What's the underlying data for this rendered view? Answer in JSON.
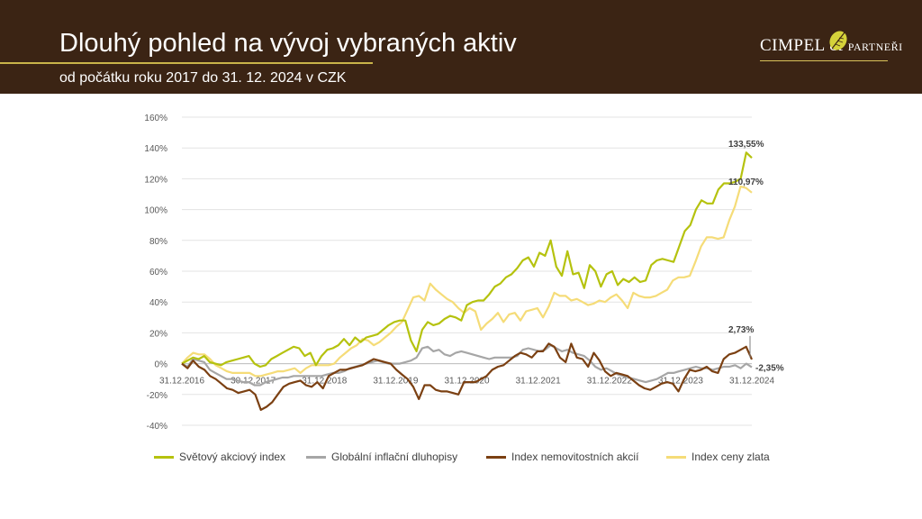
{
  "header": {
    "title": "Dlouhý pohled na vývoj vybraných aktiv",
    "subtitle": "od počátku roku 2017 do 31. 12. 2024 v CZK",
    "logo_main": "CIMPEL",
    "logo_amp": "&",
    "logo_small": "PARTNEŘI"
  },
  "colors": {
    "header_bg": "#3b2414",
    "accent": "#c9b44a"
  },
  "chart_data": {
    "type": "line",
    "x_tick_labels": [
      "31.12.2016",
      "30.12.2017",
      "31.12.2018",
      "31.12.2019",
      "31.12.2020",
      "31.12.2021",
      "31.12.2022",
      "31.12.2023",
      "31.12.2024"
    ],
    "y_tick_labels": [
      "-40%",
      "-20%",
      "0%",
      "20%",
      "40%",
      "60%",
      "80%",
      "100%",
      "120%",
      "140%",
      "160%"
    ],
    "ylim": [
      -40,
      160
    ],
    "xlim": [
      0,
      96
    ],
    "grid": true,
    "legend_position": "bottom",
    "series": [
      {
        "name": "Světový akciový index",
        "color": "#b5c20e",
        "end_label": "133,55%",
        "values": [
          0,
          2,
          4,
          3,
          5,
          1,
          0,
          -1,
          1,
          2,
          3,
          4,
          5,
          0,
          -2,
          -1,
          3,
          5,
          7,
          9,
          11,
          10,
          5,
          7,
          -1,
          5,
          9,
          10,
          12,
          16,
          12,
          17,
          14,
          17,
          18,
          19,
          22,
          25,
          27,
          28,
          28,
          15,
          8,
          22,
          27,
          25,
          26,
          29,
          31,
          30,
          28,
          38,
          40,
          41,
          41,
          45,
          50,
          52,
          56,
          58,
          62,
          67,
          69,
          63,
          72,
          70,
          80,
          63,
          57,
          73,
          58,
          59,
          49,
          64,
          60,
          50,
          58,
          60,
          51,
          55,
          53,
          56,
          53,
          54,
          64,
          67,
          68,
          67,
          66,
          76,
          86,
          90,
          100,
          106,
          104,
          104,
          113,
          117,
          117,
          118,
          120,
          137,
          133.55
        ]
      },
      {
        "name": "Globální inflační dluhopisy",
        "color": "#a6a6a6",
        "values": [
          0,
          -2,
          3,
          2,
          1,
          -4,
          -6,
          -8,
          -10,
          -10,
          -11,
          -12,
          -12,
          -14,
          -14,
          -12,
          -11,
          -10,
          -9,
          -9,
          -8,
          -8,
          -8,
          -8,
          -8,
          -8,
          -7,
          -6,
          -6,
          -5,
          -3,
          -2,
          -1,
          0,
          1,
          2,
          1,
          0,
          0,
          0,
          1,
          2,
          4,
          10,
          11,
          8,
          9,
          6,
          5,
          7,
          8,
          7,
          6,
          5,
          4,
          3,
          4,
          4,
          4,
          4,
          5,
          9,
          10,
          9,
          8,
          9,
          12,
          10,
          8,
          9,
          7,
          6,
          5,
          2,
          -2,
          -4,
          -3,
          -5,
          -7,
          -8,
          -9,
          -10,
          -11,
          -12,
          -11,
          -10,
          -8,
          -6,
          -6,
          -5,
          -4,
          -3,
          -2,
          -3,
          -3,
          -4,
          -3,
          -2,
          -2,
          -1,
          -3,
          0,
          -2.35
        ]
      },
      {
        "name": "Index nemovitostních akcií",
        "color": "#7b4012",
        "end_label": "2,73%",
        "values": [
          0,
          -3,
          2,
          -2,
          -4,
          -8,
          -10,
          -13,
          -16,
          -17,
          -19,
          -18,
          -17,
          -20,
          -30,
          -28,
          -25,
          -20,
          -15,
          -13,
          -12,
          -11,
          -14,
          -15,
          -12,
          -16,
          -8,
          -6,
          -4,
          -4,
          -3,
          -2,
          -1,
          1,
          3,
          2,
          1,
          0,
          -4,
          -7,
          -10,
          -15,
          -23,
          -14,
          -14,
          -17,
          -18,
          -18,
          -19,
          -20,
          -12,
          -12,
          -12,
          -10,
          -8,
          -4,
          -2,
          -1,
          2,
          5,
          7,
          6,
          4,
          8,
          8,
          13,
          11,
          4,
          1,
          13,
          4,
          3,
          -2,
          7,
          2,
          -5,
          -8,
          -6,
          -7,
          -8,
          -11,
          -14,
          -16,
          -17,
          -15,
          -13,
          -12,
          -13,
          -18,
          -10,
          -4,
          -5,
          -4,
          -2,
          -5,
          -6,
          3,
          6,
          7,
          9,
          11,
          2.73
        ]
      },
      {
        "name": "Index ceny zlata",
        "color": "#f5dc78",
        "end_label": "110,97%",
        "values": [
          0,
          4,
          7,
          6,
          6,
          3,
          -1,
          -3,
          -5,
          -6,
          -6,
          -6,
          -6,
          -8,
          -8,
          -7,
          -6,
          -5,
          -5,
          -4,
          -3,
          -6,
          -3,
          -1,
          -1,
          -1,
          -1,
          0,
          4,
          7,
          10,
          12,
          16,
          15,
          12,
          14,
          17,
          20,
          24,
          27,
          35,
          43,
          44,
          41,
          52,
          48,
          45,
          42,
          40,
          36,
          33,
          36,
          34,
          22,
          26,
          29,
          33,
          27,
          32,
          33,
          28,
          34,
          35,
          36,
          30,
          37,
          46,
          44,
          44,
          41,
          42,
          40,
          38,
          39,
          41,
          40,
          43,
          45,
          41,
          36,
          46,
          44,
          43,
          43,
          44,
          46,
          48,
          54,
          56,
          56,
          57,
          66,
          76,
          82,
          82,
          81,
          82,
          93,
          102,
          115,
          114,
          110.97
        ]
      },
      {
        "name": "",
        "color": "#c8c8c8",
        "end_label": "-2,35%",
        "values": []
      }
    ]
  },
  "legend": [
    {
      "label": "Světový akciový index",
      "color": "#b5c20e"
    },
    {
      "label": "Globální inflační dluhopisy",
      "color": "#a6a6a6"
    },
    {
      "label": "Index nemovitostních akcií",
      "color": "#7b4012"
    },
    {
      "label": "Index ceny zlata",
      "color": "#f5dc78"
    }
  ]
}
